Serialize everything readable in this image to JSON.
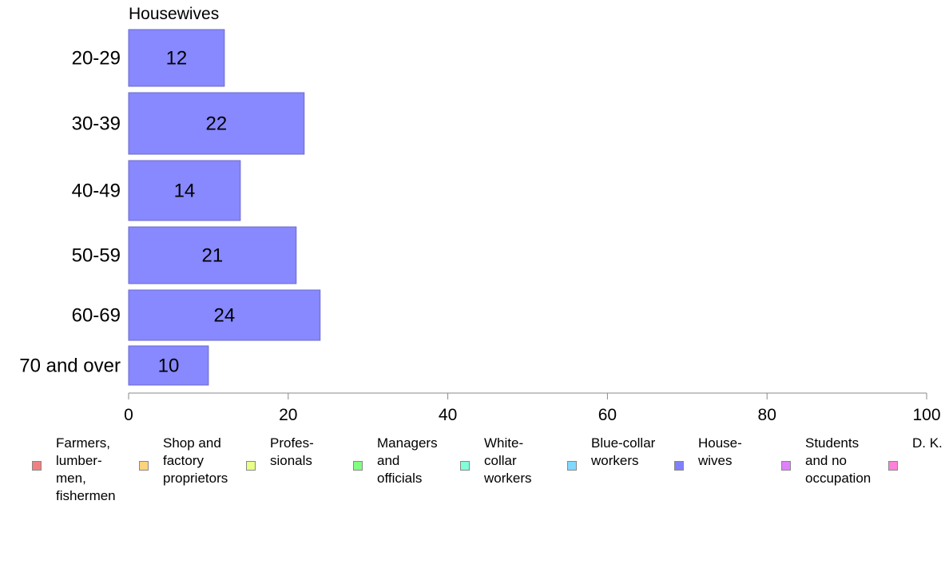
{
  "chart_data": {
    "type": "bar",
    "orientation": "horizontal",
    "title": "Housewives",
    "categories": [
      "20-29",
      "30-39",
      "40-49",
      "50-59",
      "60-69",
      "70 and over"
    ],
    "values": [
      12,
      22,
      14,
      21,
      24,
      10
    ],
    "value_labels": [
      "12",
      "22",
      "14",
      "21",
      "24",
      "10"
    ],
    "bar_color": "#8888ff",
    "xlim": [
      0,
      100
    ],
    "x_ticks": [
      0,
      20,
      40,
      60,
      80,
      100
    ],
    "x_tick_labels": [
      "0",
      "20",
      "40",
      "60",
      "80",
      "100"
    ],
    "grid": false,
    "legend_position": "bottom"
  },
  "legend": {
    "items": [
      {
        "label": "Farmers,\nlumber-\nmen,\nfishermen",
        "color": "#f08080"
      },
      {
        "label": "Shop and\nfactory\nproprietors",
        "color": "#ffd27f"
      },
      {
        "label": "Profes-\nsionals",
        "color": "#e8ff88"
      },
      {
        "label": "Managers\nand\nofficials",
        "color": "#80ff80"
      },
      {
        "label": "White-\ncollar\nworkers",
        "color": "#80ffd8"
      },
      {
        "label": "Blue-collar\nworkers",
        "color": "#80d8ff"
      },
      {
        "label": "House-\nwives",
        "color": "#8080ff"
      },
      {
        "label": "Students\nand no\noccupation",
        "color": "#e080ff"
      },
      {
        "label": "D. K.",
        "color": "#ff80d8"
      }
    ]
  }
}
